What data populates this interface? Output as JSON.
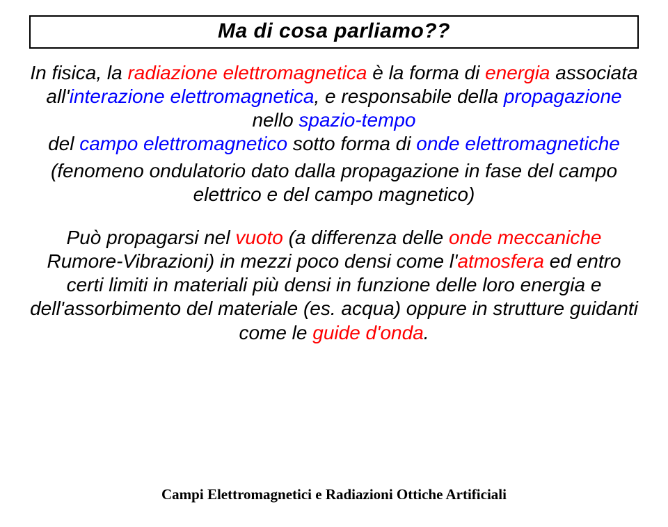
{
  "title": "Ma di cosa parliamo??",
  "title_fontsize": 30,
  "body_fontsize": 28,
  "p1": {
    "t1": "In fisica, la ",
    "red1": "radiazione elettromagnetica",
    "t2": " è la forma di ",
    "red2": "energia",
    "t3": " associata all'",
    "blue1": "interazione elettromagnetica",
    "t4": ", e responsabile della ",
    "blue2": "propagazione",
    "t5": " nello ",
    "blue3": "spazio-tempo",
    "t6": " ",
    "t6b": "del ",
    "blue4": "campo elettromagnetico",
    "t7": " sotto forma di ",
    "blue5": "onde elettromagnetiche"
  },
  "subnote": "(fenomeno ondulatorio dato dalla propagazione in fase del campo elettrico e del campo magnetico)",
  "p2": {
    "t1": "Può propagarsi nel ",
    "red1": "vuoto",
    "t2": " (a differenza delle ",
    "red2": "onde meccaniche",
    "t3": " Rumore-Vibrazioni) in mezzi poco densi come l'",
    "red3": "atmosfera",
    "t4": " ed entro certi limiti in materiali più densi in funzione delle loro energia e dell'assorbimento del materiale (es. acqua) oppure in strutture guidanti come le ",
    "red4": "guide d'onda",
    "t5": "."
  },
  "footer": "Campi Elettromagnetici  e Radiazioni Ottiche Artificiali",
  "footer_fontsize": 21,
  "colors": {
    "red": "#ff0000",
    "blue": "#0000ff",
    "text": "#000000",
    "bg": "#ffffff",
    "border": "#000000"
  }
}
